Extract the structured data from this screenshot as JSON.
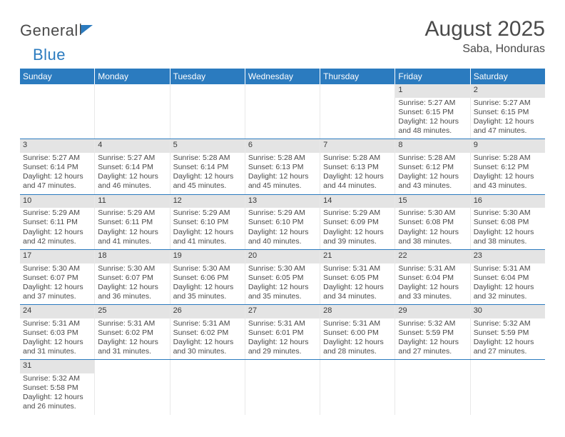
{
  "brand": {
    "part1": "General",
    "part2": "Blue"
  },
  "title": "August 2025",
  "location": "Saba, Honduras",
  "colors": {
    "header_bg": "#2b7bbf",
    "header_text": "#ffffff",
    "row_divider": "#2b7bbf",
    "daynum_bg": "#e4e4e4",
    "text": "#4a4a4a"
  },
  "weekdays": [
    "Sunday",
    "Monday",
    "Tuesday",
    "Wednesday",
    "Thursday",
    "Friday",
    "Saturday"
  ],
  "weeks": [
    [
      null,
      null,
      null,
      null,
      null,
      {
        "n": "1",
        "sr": "5:27 AM",
        "ss": "6:15 PM",
        "dl": "12 hours and 48 minutes."
      },
      {
        "n": "2",
        "sr": "5:27 AM",
        "ss": "6:15 PM",
        "dl": "12 hours and 47 minutes."
      }
    ],
    [
      {
        "n": "3",
        "sr": "5:27 AM",
        "ss": "6:14 PM",
        "dl": "12 hours and 47 minutes."
      },
      {
        "n": "4",
        "sr": "5:27 AM",
        "ss": "6:14 PM",
        "dl": "12 hours and 46 minutes."
      },
      {
        "n": "5",
        "sr": "5:28 AM",
        "ss": "6:14 PM",
        "dl": "12 hours and 45 minutes."
      },
      {
        "n": "6",
        "sr": "5:28 AM",
        "ss": "6:13 PM",
        "dl": "12 hours and 45 minutes."
      },
      {
        "n": "7",
        "sr": "5:28 AM",
        "ss": "6:13 PM",
        "dl": "12 hours and 44 minutes."
      },
      {
        "n": "8",
        "sr": "5:28 AM",
        "ss": "6:12 PM",
        "dl": "12 hours and 43 minutes."
      },
      {
        "n": "9",
        "sr": "5:28 AM",
        "ss": "6:12 PM",
        "dl": "12 hours and 43 minutes."
      }
    ],
    [
      {
        "n": "10",
        "sr": "5:29 AM",
        "ss": "6:11 PM",
        "dl": "12 hours and 42 minutes."
      },
      {
        "n": "11",
        "sr": "5:29 AM",
        "ss": "6:11 PM",
        "dl": "12 hours and 41 minutes."
      },
      {
        "n": "12",
        "sr": "5:29 AM",
        "ss": "6:10 PM",
        "dl": "12 hours and 41 minutes."
      },
      {
        "n": "13",
        "sr": "5:29 AM",
        "ss": "6:10 PM",
        "dl": "12 hours and 40 minutes."
      },
      {
        "n": "14",
        "sr": "5:29 AM",
        "ss": "6:09 PM",
        "dl": "12 hours and 39 minutes."
      },
      {
        "n": "15",
        "sr": "5:30 AM",
        "ss": "6:08 PM",
        "dl": "12 hours and 38 minutes."
      },
      {
        "n": "16",
        "sr": "5:30 AM",
        "ss": "6:08 PM",
        "dl": "12 hours and 38 minutes."
      }
    ],
    [
      {
        "n": "17",
        "sr": "5:30 AM",
        "ss": "6:07 PM",
        "dl": "12 hours and 37 minutes."
      },
      {
        "n": "18",
        "sr": "5:30 AM",
        "ss": "6:07 PM",
        "dl": "12 hours and 36 minutes."
      },
      {
        "n": "19",
        "sr": "5:30 AM",
        "ss": "6:06 PM",
        "dl": "12 hours and 35 minutes."
      },
      {
        "n": "20",
        "sr": "5:30 AM",
        "ss": "6:05 PM",
        "dl": "12 hours and 35 minutes."
      },
      {
        "n": "21",
        "sr": "5:31 AM",
        "ss": "6:05 PM",
        "dl": "12 hours and 34 minutes."
      },
      {
        "n": "22",
        "sr": "5:31 AM",
        "ss": "6:04 PM",
        "dl": "12 hours and 33 minutes."
      },
      {
        "n": "23",
        "sr": "5:31 AM",
        "ss": "6:04 PM",
        "dl": "12 hours and 32 minutes."
      }
    ],
    [
      {
        "n": "24",
        "sr": "5:31 AM",
        "ss": "6:03 PM",
        "dl": "12 hours and 31 minutes."
      },
      {
        "n": "25",
        "sr": "5:31 AM",
        "ss": "6:02 PM",
        "dl": "12 hours and 31 minutes."
      },
      {
        "n": "26",
        "sr": "5:31 AM",
        "ss": "6:02 PM",
        "dl": "12 hours and 30 minutes."
      },
      {
        "n": "27",
        "sr": "5:31 AM",
        "ss": "6:01 PM",
        "dl": "12 hours and 29 minutes."
      },
      {
        "n": "28",
        "sr": "5:31 AM",
        "ss": "6:00 PM",
        "dl": "12 hours and 28 minutes."
      },
      {
        "n": "29",
        "sr": "5:32 AM",
        "ss": "5:59 PM",
        "dl": "12 hours and 27 minutes."
      },
      {
        "n": "30",
        "sr": "5:32 AM",
        "ss": "5:59 PM",
        "dl": "12 hours and 27 minutes."
      }
    ],
    [
      {
        "n": "31",
        "sr": "5:32 AM",
        "ss": "5:58 PM",
        "dl": "12 hours and 26 minutes."
      },
      null,
      null,
      null,
      null,
      null,
      null
    ]
  ],
  "labels": {
    "sunrise": "Sunrise: ",
    "sunset": "Sunset: ",
    "daylight": "Daylight: "
  }
}
